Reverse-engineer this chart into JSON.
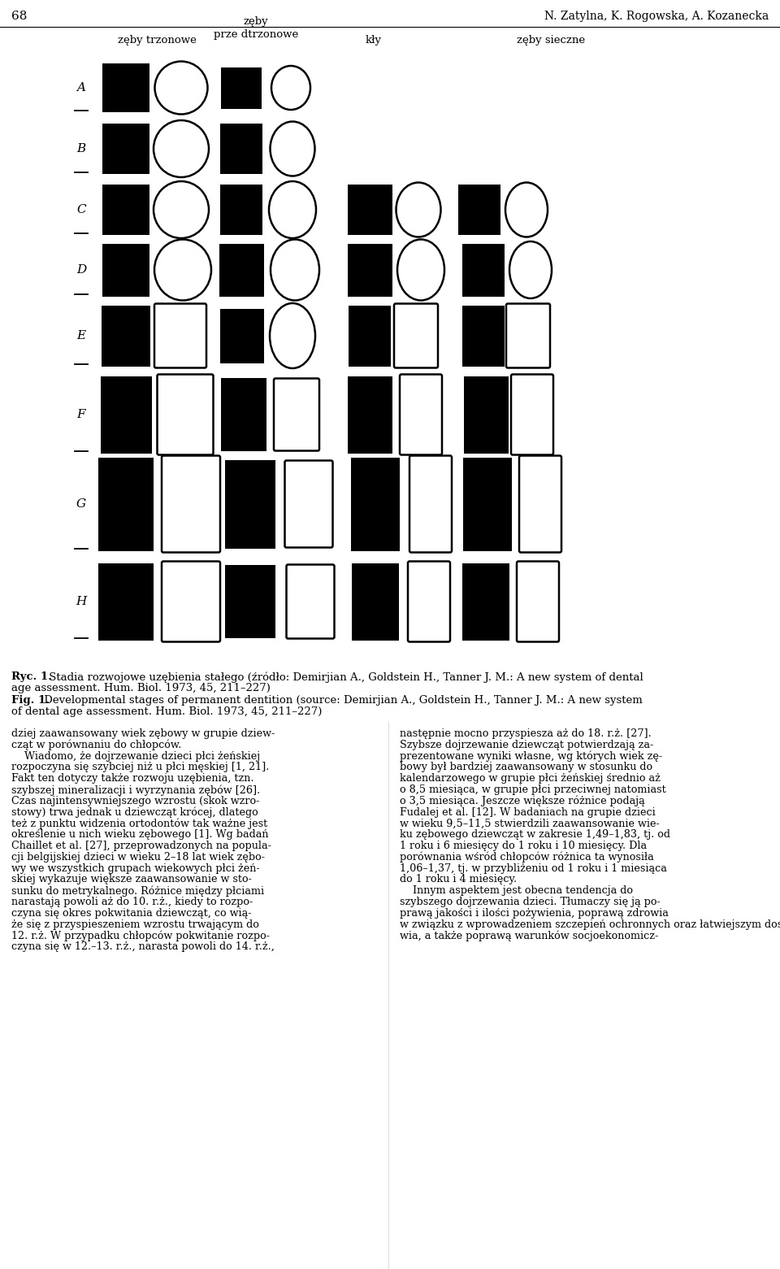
{
  "page_number": "68",
  "header_right": "N. Zatylna, K. Rogowska, A. Kozanecka",
  "bg_color": "#ffffff",
  "col_header_zt": "zęby trzonowe",
  "col_header_zp": "zęby\nprze dtrzonowe",
  "col_header_kl": "kły",
  "col_header_zs": "zęby sieczne",
  "row_labels": [
    "A",
    "B",
    "C",
    "D",
    "E",
    "F",
    "G",
    "H"
  ],
  "caption_pl_bold": "Ryc. 1.",
  "caption_pl_rest": " Stadia rozwojowe uzębienia stałego (źródło: Demirjian A., Goldstein H., Tanner J. M.: A new system of dental",
  "caption_pl_rest2": "age assessment. Hum. Biol. 1973, 45, 211–227)",
  "caption_en_bold": "Fig. 1.",
  "caption_en_rest": " Developmental stages of permanent dentition (source: Demirjian A., Goldstein H., Tanner J. M.: A new system",
  "caption_en_rest2": "of dental age assessment. Hum. Biol. 1973, 45, 211–227)",
  "left_col_lines": [
    "dziej zaawansowany wiek zębowy w grupie dziew-",
    "cząt w porównaniu do chłopców.",
    "    Wiadomo, że dojrzewanie dzieci płci żeńskiej",
    "rozpoczyna się szybciej niż u płci męskiej [1, 21].",
    "Fakt ten dotyczy także rozwoju uzębienia, tzn.",
    "szybszej mineralizacji i wyrzynania zębów [26].",
    "Czas najintensywniejszego wzrostu (skok wzro-",
    "stowy) trwa jednak u dziewcząt krócej, dlatego",
    "też z punktu widzenia ortodontów tak ważne jest",
    "określenie u nich wieku zębowego [1]. Wg badań",
    "Chaillet et al. [27], przeprowadzonych na popula-",
    "cji belgijskiej dzieci w wieku 2–18 lat wiek zębo-",
    "wy we wszystkich grupach wiekowych płci żeń-",
    "skiej wykazuje większe zaawansowanie w sto-",
    "sunku do metrykalnego. Różnice między płciami",
    "narastają powoli aż do 10. r.ż., kiedy to rozpo-",
    "czyna się okres pokwitania dziewcząt, co wią-",
    "że się z przyspieszeniem wzrostu trwającym do",
    "12. r.ż. W przypadku chłopców pokwitanie rozpo-",
    "czyna się w 12.–13. r.ż., narasta powoli do 14. r.ż.,"
  ],
  "right_col_lines": [
    "następnie mocno przyspiesza aż do 18. r.ż. [27].",
    "Szybsze dojrzewanie dziewcząt potwierdzają za-",
    "prezentowane wyniki własne, wg których wiek zę-",
    "bowy był bardziej zaawansowany w stosunku do",
    "kalendarzowego w grupie płci żeńskiej średnio aż",
    "o 8,5 miesiąca, w grupie płci przeciwnej natomiast",
    "o 3,5 miesiąca. Jeszcze większe różnice podają",
    "Fudalej et al. [12]. W badaniach na grupie dzieci",
    "w wieku 9,5–11,5 stwierdzili zaawansowanie wie-",
    "ku zębowego dziewcząt w zakresie 1,49–1,83, tj. od",
    "1 roku i 6 miesięcy do 1 roku i 10 miesięcy. Dla",
    "porównania wśród chłopców różnica ta wynosiła",
    "1,06–1,37, tj. w przybliżeniu od 1 roku i 1 miesiąca",
    "do 1 roku i 4 miesięcy.",
    "    Innym aspektem jest obecna tendencja do",
    "szybszego dojrzewania dzieci. Tłumaczy się ją po-",
    "prawą jakości i ilości pożywienia, poprawą zdrowia",
    "w związku z wprowadzeniem szczepień ochronnych oraz łatwiejszym dostępem do służby zdro-",
    "wia, a także poprawą warunków socjoekonomicz-"
  ]
}
